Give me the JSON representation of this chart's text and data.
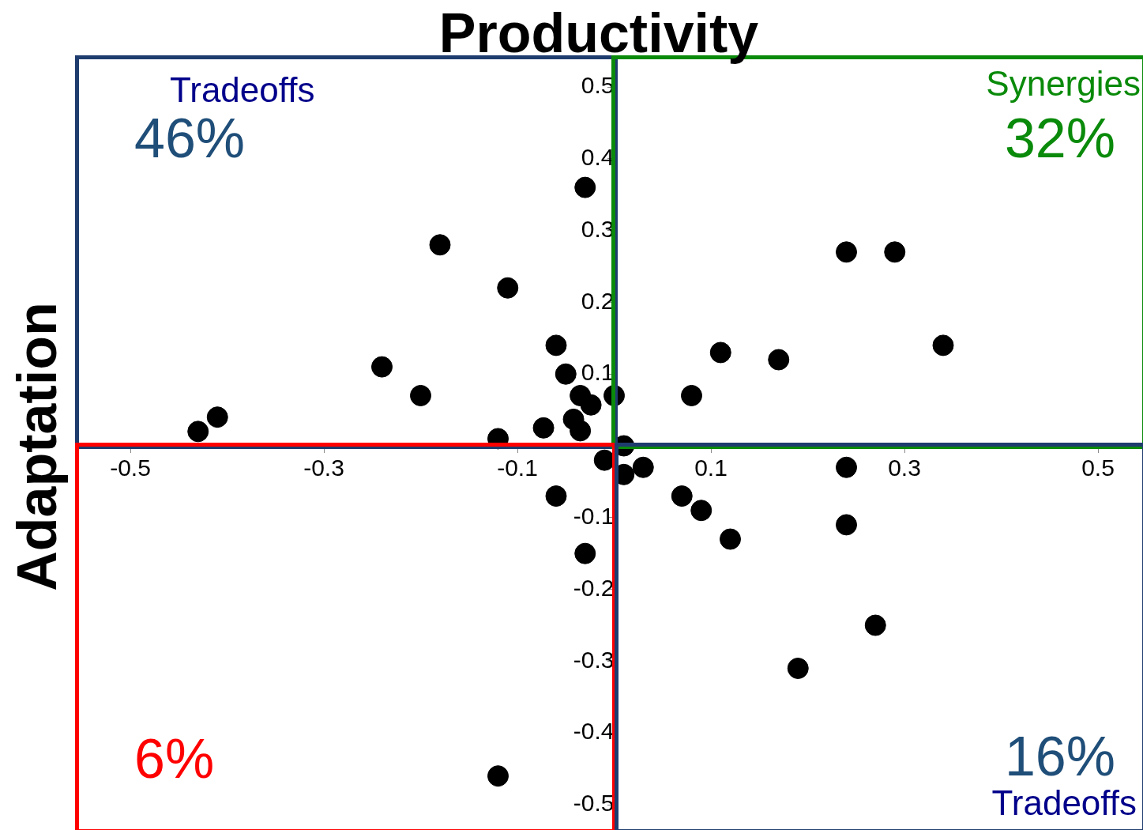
{
  "chart_data": {
    "type": "scatter",
    "title": "Productivity",
    "ylabel": "Adaptation",
    "annotations": [
      "Tradeoffs",
      "46%",
      "Synergies",
      "32%",
      "6%",
      "16%",
      "Tradeoffs"
    ],
    "x": [
      -0.03,
      -0.18,
      -0.11,
      -0.24,
      -0.2,
      -0.41,
      -0.43,
      -0.12,
      -0.06,
      -0.05,
      -0.035,
      -0.024,
      -0.042,
      -0.035,
      -0.073,
      0.0,
      0.01,
      -0.01,
      0.01,
      0.03,
      -0.06,
      -0.03,
      0.08,
      0.11,
      0.17,
      0.24,
      0.29,
      0.34,
      0.24,
      0.07,
      0.09,
      0.12,
      0.24,
      0.27,
      0.19,
      -0.12
    ],
    "values": [
      0.36,
      0.28,
      0.22,
      0.11,
      0.07,
      0.04,
      0.02,
      0.01,
      0.14,
      0.1,
      0.07,
      0.057,
      0.037,
      0.021,
      0.025,
      0.07,
      0.0,
      -0.02,
      -0.04,
      -0.03,
      -0.07,
      -0.15,
      0.07,
      0.13,
      0.12,
      0.27,
      0.27,
      0.14,
      -0.03,
      -0.07,
      -0.09,
      -0.13,
      -0.11,
      -0.25,
      -0.31,
      -0.46
    ],
    "color": "#000000",
    "marker": "circle",
    "grid": false,
    "legend": false,
    "xlim": [
      -0.5,
      0.5
    ],
    "xticks": [
      -0.5,
      -0.3,
      -0.1,
      0.1,
      0.3,
      0.5
    ],
    "ylim": [
      -0.5,
      0.5
    ],
    "yticks": [
      -0.5,
      -0.4,
      -0.3,
      -0.2,
      -0.1,
      {
        "value": 0,
        "label": null
      },
      0.1,
      0.2,
      0.3,
      0.4,
      0.5
    ]
  }
}
